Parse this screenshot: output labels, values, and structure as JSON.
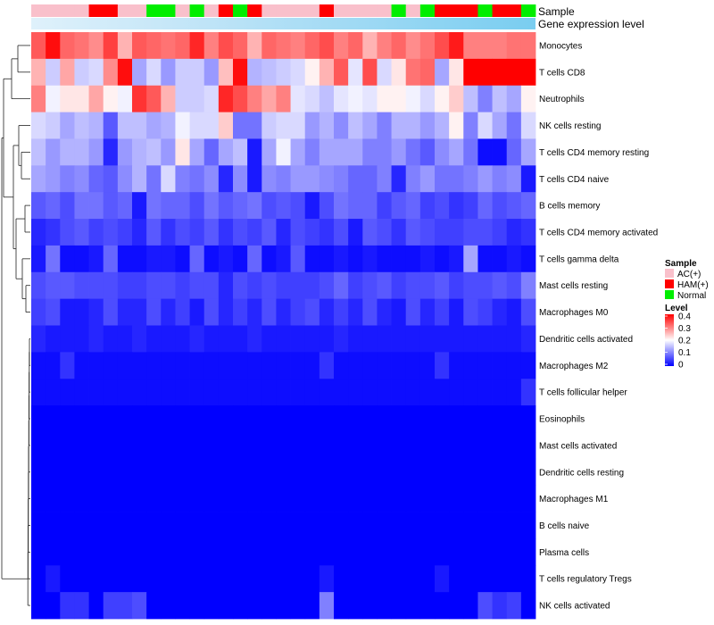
{
  "chart_data": {
    "type": "heatmap",
    "title": "",
    "annotation_tracks": [
      "Sample",
      "Gene expression level"
    ],
    "row_labels": [
      "Monocytes",
      "T cells CD8",
      "Neutrophils",
      "NK cells resting",
      "T cells CD4 memory resting",
      "T cells CD4 naive",
      "B cells memory",
      "T cells CD4 memory activated",
      "T cells gamma delta",
      "Mast cells resting",
      "Macrophages M0",
      "Dendritic cells activated",
      "Macrophages M2",
      "T cells follicular helper",
      "Eosinophils",
      "Mast cells activated",
      "Dendritic cells resting",
      "Macrophages M1",
      "B cells naive",
      "Plasma cells",
      "T cells regulatory  Tregs",
      "NK cells activated"
    ],
    "sample_groups": [
      "AC(+)",
      "AC(+)",
      "AC(+)",
      "AC(+)",
      "HAM(+)",
      "HAM(+)",
      "AC(+)",
      "AC(+)",
      "Normal",
      "Normal",
      "AC(+)",
      "Normal",
      "AC(+)",
      "HAM(+)",
      "Normal",
      "HAM(+)",
      "AC(+)",
      "AC(+)",
      "AC(+)",
      "AC(+)",
      "HAM(+)",
      "AC(+)",
      "AC(+)",
      "AC(+)",
      "AC(+)",
      "Normal",
      "AC(+)",
      "Normal",
      "HAM(+)",
      "HAM(+)",
      "HAM(+)",
      "Normal",
      "HAM(+)",
      "HAM(+)",
      "Normal"
    ],
    "gene_expression_bar": "light-to-sky-blue gradient",
    "legend": {
      "sample_title": "Sample",
      "sample_entries": [
        {
          "label": "AC(+)",
          "color": "#f9c0cb"
        },
        {
          "label": "HAM(+)",
          "color": "#ff0000"
        },
        {
          "label": "Normal",
          "color": "#00ee00"
        }
      ],
      "level_title": "Level",
      "level_ticks": [
        "0.4",
        "0.3",
        "0.2",
        "0.1",
        "0"
      ],
      "level_range": [
        0,
        0.4
      ],
      "placement": "right"
    },
    "color_scale": {
      "low": "#0000ff",
      "mid": "#ffffff",
      "high": "#ff0000",
      "min": 0,
      "mid_value": 0.2,
      "max": 0.4
    },
    "values": [
      [
        0.33,
        0.39,
        0.32,
        0.31,
        0.29,
        0.35,
        0.26,
        0.33,
        0.32,
        0.31,
        0.32,
        0.37,
        0.3,
        0.34,
        0.32,
        0.26,
        0.32,
        0.31,
        0.3,
        0.32,
        0.34,
        0.3,
        0.32,
        0.26,
        0.3,
        0.32,
        0.29,
        0.31,
        0.34,
        0.38,
        0.3,
        0.3,
        0.3,
        0.31,
        0.31
      ],
      [
        0.26,
        0.16,
        0.27,
        0.16,
        0.17,
        0.29,
        0.39,
        0.13,
        0.17,
        0.12,
        0.16,
        0.16,
        0.12,
        0.25,
        0.39,
        0.14,
        0.15,
        0.16,
        0.17,
        0.21,
        0.26,
        0.33,
        0.18,
        0.34,
        0.17,
        0.22,
        0.31,
        0.32,
        0.13,
        0.22,
        0.4,
        0.4,
        0.4,
        0.4,
        0.4
      ],
      [
        0.3,
        0.19,
        0.22,
        0.22,
        0.27,
        0.21,
        0.19,
        0.36,
        0.33,
        0.26,
        0.16,
        0.16,
        0.17,
        0.37,
        0.34,
        0.3,
        0.27,
        0.3,
        0.18,
        0.17,
        0.15,
        0.18,
        0.19,
        0.18,
        0.21,
        0.21,
        0.19,
        0.17,
        0.21,
        0.24,
        0.15,
        0.1,
        0.15,
        0.13,
        0.21
      ],
      [
        0.17,
        0.16,
        0.13,
        0.15,
        0.14,
        0.07,
        0.15,
        0.15,
        0.13,
        0.14,
        0.19,
        0.17,
        0.17,
        0.24,
        0.09,
        0.09,
        0.16,
        0.17,
        0.17,
        0.12,
        0.14,
        0.11,
        0.15,
        0.13,
        0.1,
        0.14,
        0.14,
        0.12,
        0.14,
        0.21,
        0.1,
        0.17,
        0.13,
        0.09,
        0.17
      ],
      [
        0.15,
        0.12,
        0.14,
        0.14,
        0.12,
        0.03,
        0.12,
        0.14,
        0.15,
        0.12,
        0.22,
        0.13,
        0.08,
        0.13,
        0.15,
        0.02,
        0.13,
        0.19,
        0.13,
        0.1,
        0.13,
        0.13,
        0.13,
        0.1,
        0.1,
        0.12,
        0.09,
        0.07,
        0.11,
        0.13,
        0.09,
        0.01,
        0.01,
        0.08,
        0.13
      ],
      [
        0.13,
        0.12,
        0.1,
        0.11,
        0.08,
        0.07,
        0.11,
        0.14,
        0.09,
        0.17,
        0.1,
        0.09,
        0.11,
        0.03,
        0.11,
        0.02,
        0.11,
        0.1,
        0.12,
        0.12,
        0.11,
        0.1,
        0.08,
        0.08,
        0.1,
        0.03,
        0.1,
        0.12,
        0.09,
        0.09,
        0.1,
        0.12,
        0.1,
        0.11,
        0.02
      ],
      [
        0.07,
        0.08,
        0.06,
        0.09,
        0.09,
        0.07,
        0.08,
        0.02,
        0.09,
        0.08,
        0.08,
        0.06,
        0.09,
        0.07,
        0.08,
        0.09,
        0.06,
        0.07,
        0.06,
        0.02,
        0.06,
        0.09,
        0.08,
        0.08,
        0.05,
        0.07,
        0.08,
        0.05,
        0.06,
        0.04,
        0.05,
        0.08,
        0.06,
        0.07,
        0.08
      ],
      [
        0.03,
        0.04,
        0.06,
        0.07,
        0.05,
        0.06,
        0.05,
        0.03,
        0.07,
        0.04,
        0.06,
        0.05,
        0.07,
        0.04,
        0.06,
        0.05,
        0.07,
        0.03,
        0.06,
        0.05,
        0.04,
        0.06,
        0.02,
        0.07,
        0.06,
        0.04,
        0.07,
        0.06,
        0.05,
        0.05,
        0.06,
        0.06,
        0.05,
        0.03,
        0.04
      ],
      [
        0.02,
        0.09,
        0.01,
        0.01,
        0.02,
        0.08,
        0.01,
        0.01,
        0.02,
        0.02,
        0.01,
        0.08,
        0.01,
        0.02,
        0.01,
        0.08,
        0.01,
        0.02,
        0.07,
        0.01,
        0.01,
        0.02,
        0.01,
        0.02,
        0.01,
        0.01,
        0.01,
        0.02,
        0.01,
        0.02,
        0.13,
        0.01,
        0.01,
        0.02,
        0.01
      ],
      [
        0.06,
        0.07,
        0.07,
        0.06,
        0.06,
        0.06,
        0.05,
        0.05,
        0.06,
        0.06,
        0.05,
        0.06,
        0.06,
        0.03,
        0.06,
        0.05,
        0.06,
        0.05,
        0.05,
        0.05,
        0.06,
        0.08,
        0.05,
        0.06,
        0.07,
        0.05,
        0.06,
        0.06,
        0.07,
        0.05,
        0.06,
        0.06,
        0.07,
        0.06,
        0.1
      ],
      [
        0.05,
        0.06,
        0.02,
        0.02,
        0.03,
        0.06,
        0.03,
        0.03,
        0.06,
        0.03,
        0.05,
        0.02,
        0.06,
        0.03,
        0.05,
        0.03,
        0.06,
        0.03,
        0.05,
        0.06,
        0.03,
        0.05,
        0.03,
        0.06,
        0.03,
        0.02,
        0.06,
        0.03,
        0.05,
        0.02,
        0.06,
        0.05,
        0.03,
        0.02,
        0.06
      ],
      [
        0.03,
        0.02,
        0.02,
        0.02,
        0.03,
        0.02,
        0.02,
        0.03,
        0.02,
        0.02,
        0.02,
        0.03,
        0.02,
        0.02,
        0.02,
        0.03,
        0.02,
        0.02,
        0.02,
        0.02,
        0.02,
        0.03,
        0.02,
        0.02,
        0.02,
        0.02,
        0.02,
        0.02,
        0.02,
        0.02,
        0.02,
        0.02,
        0.02,
        0.02,
        0.03
      ],
      [
        0.01,
        0.01,
        0.04,
        0.01,
        0.01,
        0.01,
        0.01,
        0.01,
        0.01,
        0.01,
        0.01,
        0.01,
        0.01,
        0.01,
        0.01,
        0.01,
        0.01,
        0.01,
        0.01,
        0.01,
        0.04,
        0.01,
        0.01,
        0.01,
        0.01,
        0.01,
        0.01,
        0.01,
        0.04,
        0.01,
        0.01,
        0.01,
        0.01,
        0.01,
        0.01
      ],
      [
        0.01,
        0.01,
        0.01,
        0.01,
        0.01,
        0.01,
        0.01,
        0.01,
        0.01,
        0.01,
        0.01,
        0.01,
        0.01,
        0.01,
        0.01,
        0.01,
        0.01,
        0.01,
        0.01,
        0.01,
        0.01,
        0.01,
        0.01,
        0.01,
        0.01,
        0.01,
        0.01,
        0.01,
        0.01,
        0.01,
        0.01,
        0.01,
        0.01,
        0.01,
        0.04
      ],
      [
        0.0,
        0.0,
        0.0,
        0.0,
        0.0,
        0.0,
        0.0,
        0.0,
        0.0,
        0.0,
        0.0,
        0.0,
        0.0,
        0.0,
        0.0,
        0.0,
        0.0,
        0.0,
        0.0,
        0.0,
        0.0,
        0.0,
        0.0,
        0.0,
        0.0,
        0.0,
        0.0,
        0.0,
        0.0,
        0.0,
        0.0,
        0.0,
        0.0,
        0.0,
        0.0
      ],
      [
        0.0,
        0.0,
        0.0,
        0.0,
        0.0,
        0.0,
        0.0,
        0.0,
        0.0,
        0.0,
        0.0,
        0.0,
        0.0,
        0.0,
        0.0,
        0.0,
        0.0,
        0.0,
        0.0,
        0.0,
        0.0,
        0.0,
        0.0,
        0.0,
        0.0,
        0.0,
        0.0,
        0.0,
        0.0,
        0.0,
        0.0,
        0.0,
        0.0,
        0.0,
        0.0
      ],
      [
        0.0,
        0.0,
        0.0,
        0.0,
        0.0,
        0.0,
        0.0,
        0.0,
        0.0,
        0.0,
        0.0,
        0.0,
        0.0,
        0.0,
        0.0,
        0.0,
        0.0,
        0.0,
        0.0,
        0.0,
        0.0,
        0.0,
        0.0,
        0.0,
        0.0,
        0.0,
        0.0,
        0.0,
        0.0,
        0.0,
        0.0,
        0.0,
        0.0,
        0.0,
        0.0
      ],
      [
        0.0,
        0.0,
        0.0,
        0.0,
        0.0,
        0.0,
        0.0,
        0.0,
        0.0,
        0.0,
        0.0,
        0.0,
        0.0,
        0.0,
        0.0,
        0.0,
        0.0,
        0.0,
        0.0,
        0.0,
        0.0,
        0.0,
        0.0,
        0.0,
        0.0,
        0.0,
        0.0,
        0.0,
        0.0,
        0.0,
        0.0,
        0.0,
        0.0,
        0.0,
        0.0
      ],
      [
        0.0,
        0.0,
        0.0,
        0.0,
        0.0,
        0.0,
        0.0,
        0.0,
        0.0,
        0.0,
        0.0,
        0.0,
        0.0,
        0.0,
        0.0,
        0.0,
        0.0,
        0.0,
        0.0,
        0.0,
        0.0,
        0.0,
        0.0,
        0.0,
        0.0,
        0.0,
        0.0,
        0.0,
        0.0,
        0.0,
        0.0,
        0.0,
        0.0,
        0.0,
        0.0
      ],
      [
        0.0,
        0.0,
        0.0,
        0.0,
        0.0,
        0.0,
        0.0,
        0.0,
        0.0,
        0.0,
        0.0,
        0.0,
        0.0,
        0.0,
        0.0,
        0.0,
        0.0,
        0.0,
        0.0,
        0.0,
        0.0,
        0.0,
        0.0,
        0.0,
        0.0,
        0.0,
        0.0,
        0.0,
        0.0,
        0.0,
        0.0,
        0.0,
        0.0,
        0.0,
        0.0
      ],
      [
        0.0,
        0.02,
        0.0,
        0.0,
        0.0,
        0.0,
        0.0,
        0.0,
        0.0,
        0.0,
        0.0,
        0.0,
        0.0,
        0.0,
        0.0,
        0.0,
        0.0,
        0.0,
        0.0,
        0.0,
        0.02,
        0.0,
        0.0,
        0.0,
        0.0,
        0.0,
        0.0,
        0.0,
        0.02,
        0.0,
        0.0,
        0.0,
        0.0,
        0.0,
        0.0
      ],
      [
        0.0,
        0.0,
        0.04,
        0.04,
        0.0,
        0.05,
        0.05,
        0.06,
        0.0,
        0.0,
        0.0,
        0.0,
        0.0,
        0.0,
        0.0,
        0.0,
        0.0,
        0.0,
        0.0,
        0.0,
        0.1,
        0.0,
        0.0,
        0.0,
        0.0,
        0.0,
        0.0,
        0.0,
        0.0,
        0.0,
        0.0,
        0.06,
        0.04,
        0.05,
        0.0
      ]
    ]
  }
}
